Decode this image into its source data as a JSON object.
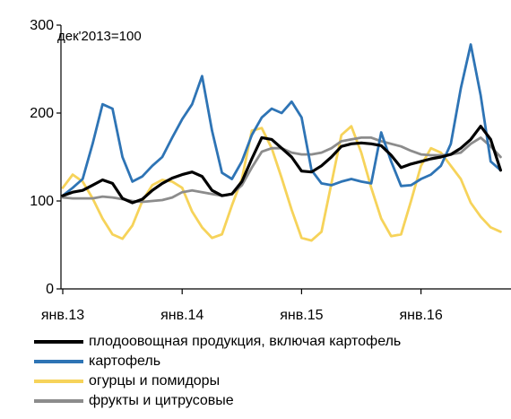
{
  "chart_data": {
    "type": "line",
    "annotation": "дек'2013=100",
    "ylim": [
      0,
      300
    ],
    "y_ticks": [
      0,
      100,
      200,
      300
    ],
    "x_tick_labels": [
      "янв.13",
      "янв.14",
      "янв.15",
      "янв.16",
      "янв.17"
    ],
    "grid": false,
    "legend_position": "bottom",
    "series": [
      {
        "name": "плодоовощная продукция, включая картофель",
        "color": "#000000",
        "values": [
          106,
          110,
          112,
          118,
          124,
          120,
          103,
          98,
          102,
          112,
          120,
          126,
          130,
          133,
          128,
          112,
          106,
          108,
          122,
          148,
          172,
          170,
          160,
          150,
          134,
          133,
          140,
          150,
          162,
          165,
          166,
          165,
          163,
          152,
          138,
          142,
          145,
          148,
          150,
          153,
          160,
          170,
          185,
          170,
          135
        ]
      },
      {
        "name": "картофель",
        "color": "#2e74b5",
        "values": [
          106,
          115,
          125,
          165,
          210,
          205,
          150,
          122,
          128,
          140,
          150,
          172,
          193,
          210,
          242,
          180,
          132,
          125,
          145,
          175,
          195,
          205,
          200,
          213,
          195,
          135,
          120,
          118,
          122,
          125,
          122,
          120,
          178,
          145,
          117,
          118,
          125,
          130,
          140,
          165,
          228,
          278,
          220,
          145,
          135
        ]
      },
      {
        "name": "огурцы и помидоры",
        "color": "#f6d35a",
        "values": [
          115,
          130,
          122,
          103,
          80,
          62,
          57,
          72,
          100,
          118,
          124,
          122,
          115,
          88,
          70,
          58,
          62,
          95,
          125,
          180,
          183,
          160,
          126,
          90,
          58,
          55,
          65,
          120,
          175,
          185,
          155,
          115,
          80,
          60,
          62,
          100,
          140,
          160,
          155,
          140,
          125,
          98,
          82,
          70,
          65
        ]
      },
      {
        "name": "фрукты и цитрусовые",
        "color": "#8c8c8c",
        "values": [
          104,
          103,
          103,
          103,
          105,
          104,
          102,
          100,
          99,
          100,
          101,
          104,
          110,
          112,
          110,
          108,
          106,
          108,
          118,
          138,
          156,
          160,
          160,
          155,
          153,
          153,
          155,
          160,
          168,
          170,
          172,
          172,
          168,
          165,
          162,
          157,
          153,
          152,
          152,
          153,
          155,
          165,
          172,
          162,
          150
        ]
      }
    ]
  }
}
